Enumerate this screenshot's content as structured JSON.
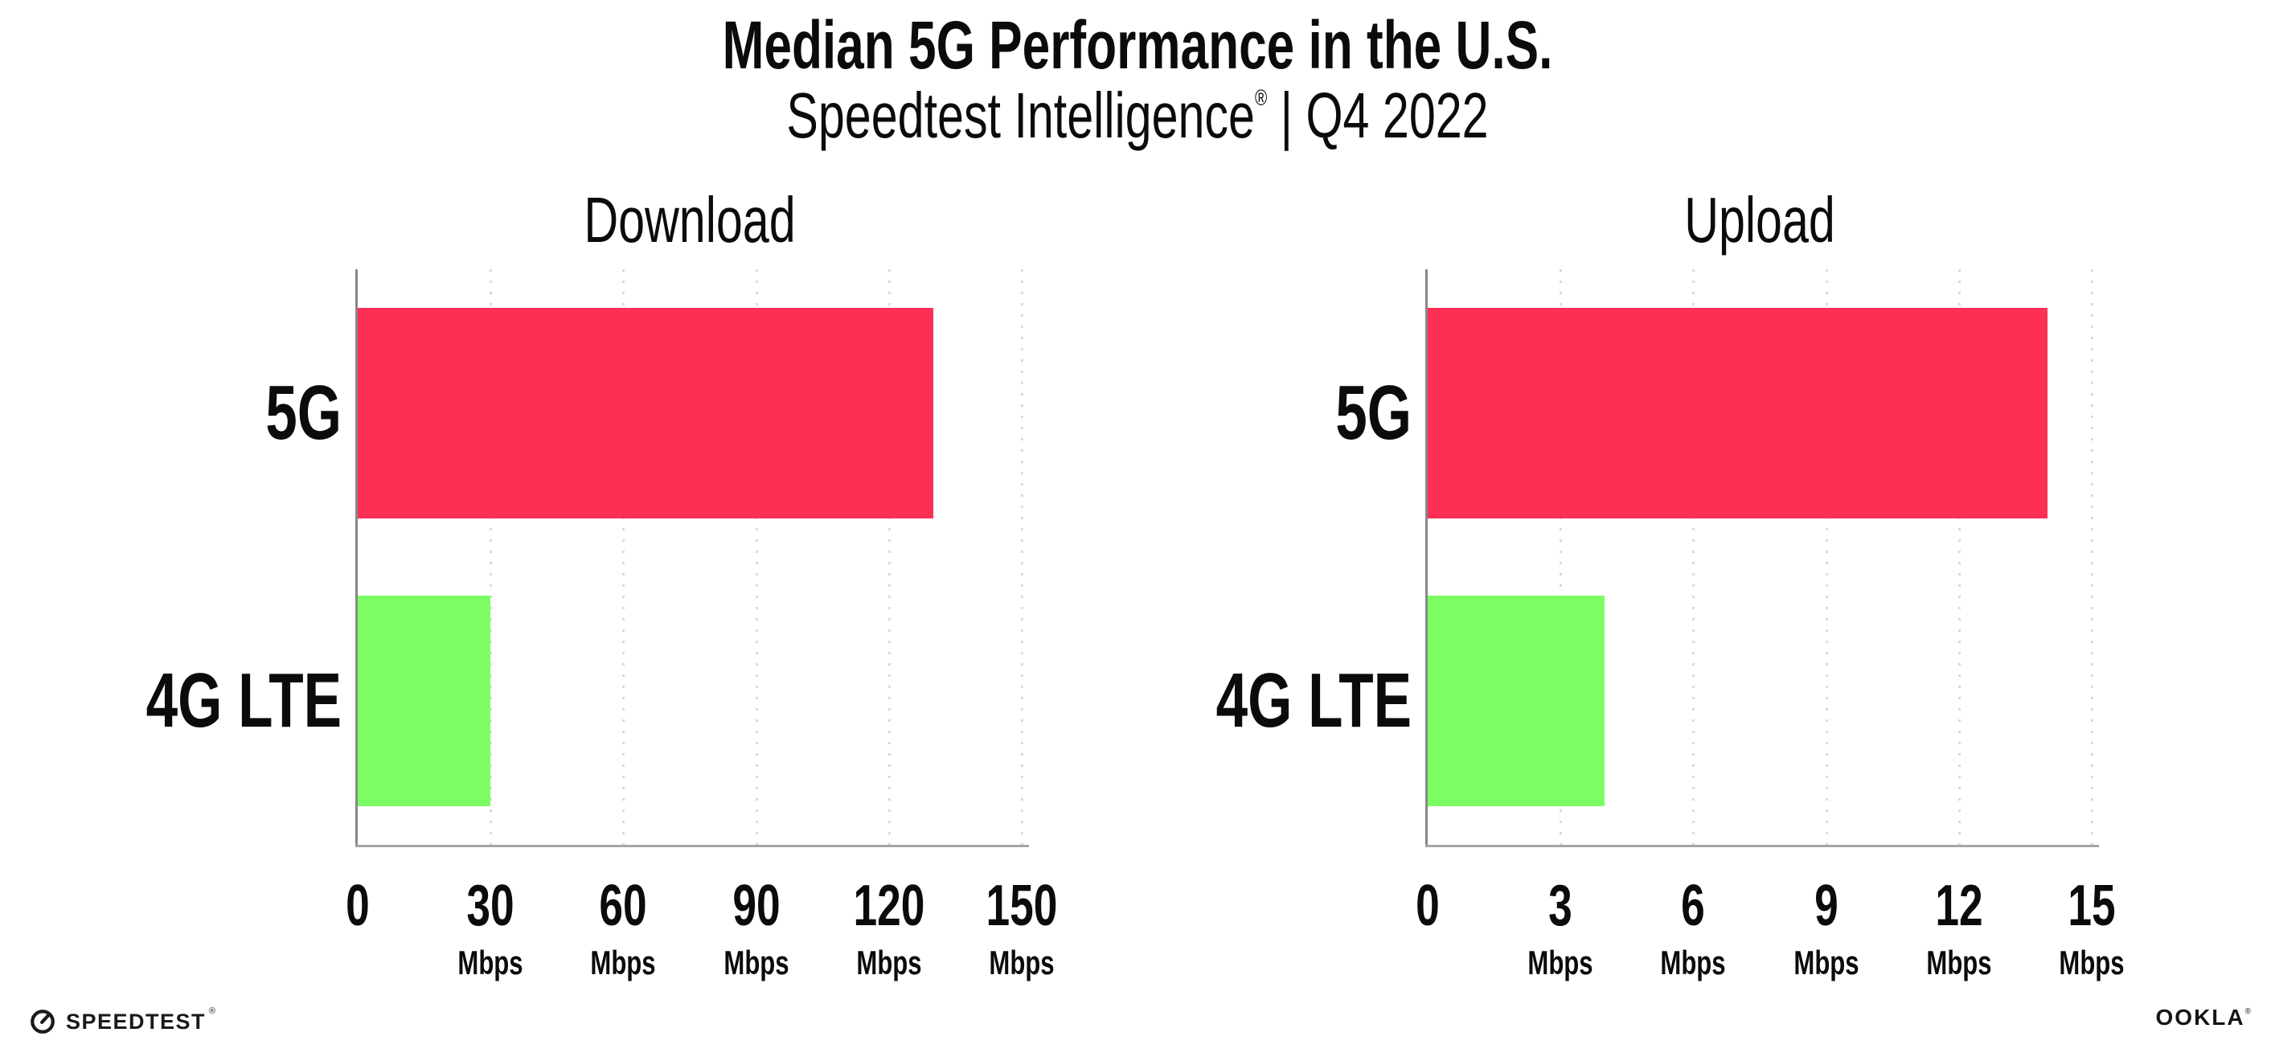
{
  "header": {
    "title": "Median 5G Performance in the U.S.",
    "subtitle_brand": "Speedtest Intelligence",
    "subtitle_reg": "®",
    "subtitle_rest": " | Q4 2022"
  },
  "chart_data": [
    {
      "type": "bar",
      "orientation": "horizontal",
      "title": "Download",
      "categories": [
        "5G",
        "4G LTE"
      ],
      "values": [
        130,
        30
      ],
      "unit": "Mbps",
      "xlabel": "",
      "ylabel": "",
      "xlim": [
        0,
        150
      ],
      "ticks": [
        0,
        30,
        60,
        90,
        120,
        150
      ],
      "bar_colors": [
        "#FD2F55",
        "#7DFD64"
      ],
      "grid": "vertical-dotted",
      "legend": "none"
    },
    {
      "type": "bar",
      "orientation": "horizontal",
      "title": "Upload",
      "categories": [
        "5G",
        "4G LTE"
      ],
      "values": [
        14,
        4
      ],
      "unit": "Mbps",
      "xlabel": "",
      "ylabel": "",
      "xlim": [
        0,
        15
      ],
      "ticks": [
        0,
        3,
        6,
        9,
        12,
        15
      ],
      "bar_colors": [
        "#FD2F55",
        "#7DFD64"
      ],
      "grid": "vertical-dotted",
      "legend": "none"
    }
  ],
  "footer": {
    "speedtest": "SPEEDTEST",
    "speedtest_reg": "®",
    "ookla": "OOKLA",
    "ookla_reg": "®"
  },
  "colors": {
    "bar_5g": "#FD2F55",
    "bar_4g_lte": "#7DFD64",
    "gridline": "#D9D9E0",
    "axis_y": "#87878C",
    "axis_x": "#A4A4A9",
    "text": "#0B0B0C"
  }
}
